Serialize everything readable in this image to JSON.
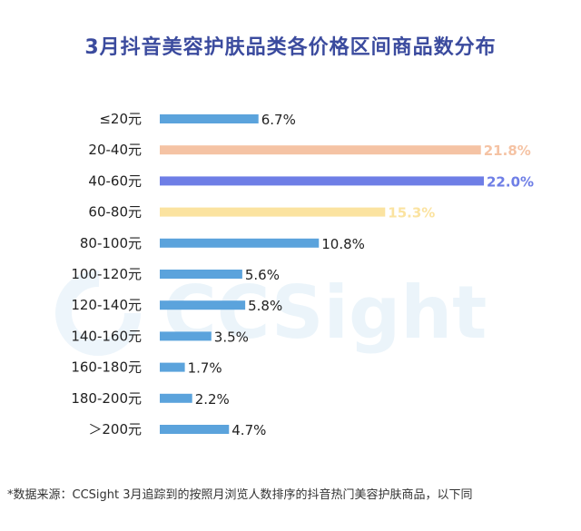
{
  "title": "3月抖音美容护肤品类各价格区间商品数分布",
  "watermark": "CCSight",
  "footnote": "*数据来源：CCSight 3月追踪到的按照月浏览人数排序的抖音热门美容护肤商品，以下同",
  "colors": {
    "title": "#3b4b9e",
    "default_bar": "#5ba3dc",
    "highlight_1": "#f5c3a4",
    "highlight_2": "#6e7ee6",
    "highlight_3": "#fbe3a0",
    "default_label": "#222222"
  },
  "chart_data": {
    "type": "bar",
    "orientation": "horizontal",
    "title": "3月抖音美容护肤品类各价格区间商品数分布",
    "categories": [
      "≤20元",
      "20-40元",
      "40-60元",
      "60-80元",
      "80-100元",
      "100-120元",
      "120-140元",
      "140-160元",
      "160-180元",
      "180-200元",
      "＞200元"
    ],
    "values": [
      6.7,
      21.8,
      22.0,
      15.3,
      10.8,
      5.6,
      5.8,
      3.5,
      1.7,
      2.2,
      4.7
    ],
    "value_labels": [
      "6.7%",
      "21.8%",
      "22.0%",
      "15.3%",
      "10.8%",
      "5.6%",
      "5.8%",
      "3.5%",
      "1.7%",
      "2.2%",
      "4.7%"
    ],
    "bar_colors": [
      "#5ba3dc",
      "#f5c3a4",
      "#6e7ee6",
      "#fbe3a0",
      "#5ba3dc",
      "#5ba3dc",
      "#5ba3dc",
      "#5ba3dc",
      "#5ba3dc",
      "#5ba3dc",
      "#5ba3dc"
    ],
    "label_colors": [
      "#222222",
      "#f5c3a4",
      "#6e7ee6",
      "#fbe3a0",
      "#222222",
      "#222222",
      "#222222",
      "#222222",
      "#222222",
      "#222222",
      "#222222"
    ],
    "unit": "%",
    "xlim": [
      0,
      22.0
    ],
    "grid": false,
    "legend": "none"
  }
}
